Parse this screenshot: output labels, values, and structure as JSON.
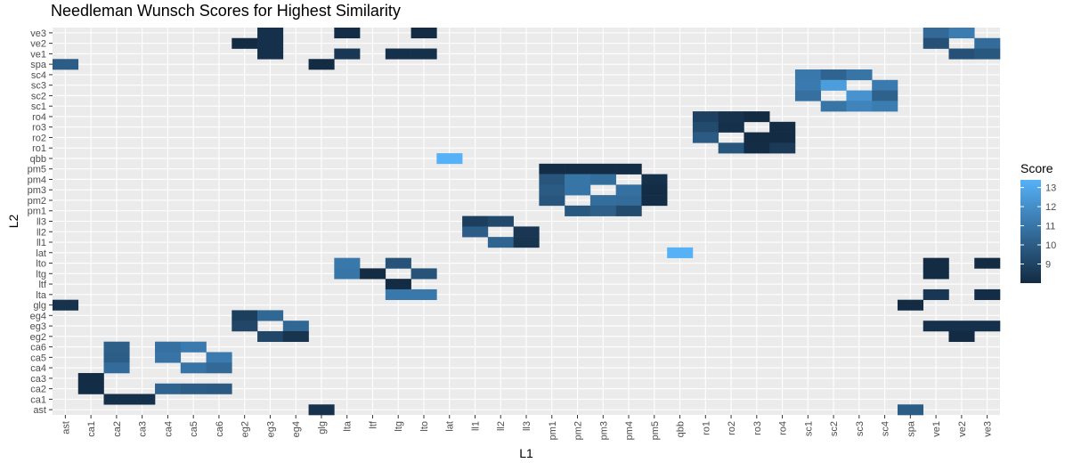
{
  "chart_data": {
    "type": "heatmap",
    "title": "Needleman Wunsch Scores for Highest Similarity",
    "xlabel": "L1",
    "ylabel": "L2",
    "legend": {
      "title": "Score",
      "ticks": [
        9,
        10,
        11,
        12,
        13
      ],
      "range": [
        8,
        13.4
      ],
      "low_color": "#132b43",
      "high_color": "#56b1f7",
      "placement": "right"
    },
    "x_categories": [
      "ast",
      "ca1",
      "ca2",
      "ca3",
      "ca4",
      "ca5",
      "ca6",
      "eg2",
      "eg3",
      "eg4",
      "glg",
      "lta",
      "ltf",
      "ltg",
      "lto",
      "lat",
      "ll1",
      "ll2",
      "ll3",
      "pm1",
      "pm2",
      "pm3",
      "pm4",
      "pm5",
      "qbb",
      "ro1",
      "ro2",
      "ro3",
      "ro4",
      "sc1",
      "sc2",
      "sc3",
      "sc4",
      "spa",
      "ve1",
      "ve2",
      "ve3"
    ],
    "y_categories": [
      "ast",
      "ca1",
      "ca2",
      "ca3",
      "ca4",
      "ca5",
      "ca6",
      "eg2",
      "eg3",
      "eg4",
      "glg",
      "lta",
      "ltf",
      "ltg",
      "lto",
      "lat",
      "ll1",
      "ll2",
      "ll3",
      "pm1",
      "pm2",
      "pm3",
      "pm4",
      "pm5",
      "qbb",
      "ro1",
      "ro2",
      "ro3",
      "ro4",
      "sc1",
      "sc2",
      "sc3",
      "sc4",
      "spa",
      "ve1",
      "ve2",
      "ve3"
    ],
    "cells": [
      {
        "x": "eg3",
        "y": "ve3",
        "value": 8.2
      },
      {
        "x": "lta",
        "y": "ve3",
        "value": 8.1
      },
      {
        "x": "lto",
        "y": "ve3",
        "value": 8.0
      },
      {
        "x": "ve1",
        "y": "ve3",
        "value": 10.5
      },
      {
        "x": "ve2",
        "y": "ve3",
        "value": 11.3
      },
      {
        "x": "eg2",
        "y": "ve2",
        "value": 8.0
      },
      {
        "x": "eg3",
        "y": "ve2",
        "value": 8.2
      },
      {
        "x": "ve1",
        "y": "ve2",
        "value": 9.5
      },
      {
        "x": "ve3",
        "y": "ve2",
        "value": 10.6
      },
      {
        "x": "eg3",
        "y": "ve1",
        "value": 8.2
      },
      {
        "x": "lta",
        "y": "ve1",
        "value": 8.5
      },
      {
        "x": "ltg",
        "y": "ve1",
        "value": 8.2
      },
      {
        "x": "lto",
        "y": "ve1",
        "value": 8.2
      },
      {
        "x": "ve2",
        "y": "ve1",
        "value": 9.5
      },
      {
        "x": "ve3",
        "y": "ve1",
        "value": 9.8
      },
      {
        "x": "ast",
        "y": "spa",
        "value": 10.0
      },
      {
        "x": "glg",
        "y": "spa",
        "value": 8.0
      },
      {
        "x": "sc1",
        "y": "sc4",
        "value": 11.1
      },
      {
        "x": "sc2",
        "y": "sc4",
        "value": 10.3
      },
      {
        "x": "sc3",
        "y": "sc4",
        "value": 11.0
      },
      {
        "x": "sc1",
        "y": "sc3",
        "value": 11.2
      },
      {
        "x": "sc2",
        "y": "sc3",
        "value": 12.6
      },
      {
        "x": "sc4",
        "y": "sc3",
        "value": 11.2
      },
      {
        "x": "sc1",
        "y": "sc2",
        "value": 10.8
      },
      {
        "x": "sc3",
        "y": "sc2",
        "value": 12.2
      },
      {
        "x": "sc4",
        "y": "sc2",
        "value": 10.2
      },
      {
        "x": "sc2",
        "y": "sc1",
        "value": 11.0
      },
      {
        "x": "sc3",
        "y": "sc1",
        "value": 11.6
      },
      {
        "x": "sc4",
        "y": "sc1",
        "value": 11.3
      },
      {
        "x": "ro1",
        "y": "ro4",
        "value": 8.9
      },
      {
        "x": "ro2",
        "y": "ro4",
        "value": 8.3
      },
      {
        "x": "ro3",
        "y": "ro4",
        "value": 8.0
      },
      {
        "x": "ro1",
        "y": "ro3",
        "value": 9.3
      },
      {
        "x": "ro2",
        "y": "ro3",
        "value": 8.2
      },
      {
        "x": "ro4",
        "y": "ro3",
        "value": 8.0
      },
      {
        "x": "ro1",
        "y": "ro2",
        "value": 9.9
      },
      {
        "x": "ro3",
        "y": "ro2",
        "value": 8.0
      },
      {
        "x": "ro4",
        "y": "ro2",
        "value": 8.0
      },
      {
        "x": "ro2",
        "y": "ro1",
        "value": 9.7
      },
      {
        "x": "ro3",
        "y": "ro1",
        "value": 8.1
      },
      {
        "x": "ro4",
        "y": "ro1",
        "value": 8.6
      },
      {
        "x": "lat",
        "y": "qbb",
        "value": 13.4
      },
      {
        "x": "pm1",
        "y": "pm5",
        "value": 8.1
      },
      {
        "x": "pm2",
        "y": "pm5",
        "value": 8.1
      },
      {
        "x": "pm3",
        "y": "pm5",
        "value": 8.1
      },
      {
        "x": "pm4",
        "y": "pm5",
        "value": 8.1
      },
      {
        "x": "pm1",
        "y": "pm4",
        "value": 9.7
      },
      {
        "x": "pm2",
        "y": "pm4",
        "value": 11.0
      },
      {
        "x": "pm3",
        "y": "pm4",
        "value": 10.7
      },
      {
        "x": "pm5",
        "y": "pm4",
        "value": 8.2
      },
      {
        "x": "pm1",
        "y": "pm3",
        "value": 9.9
      },
      {
        "x": "pm2",
        "y": "pm3",
        "value": 11.0
      },
      {
        "x": "pm4",
        "y": "pm3",
        "value": 10.8
      },
      {
        "x": "pm5",
        "y": "pm3",
        "value": 8.1
      },
      {
        "x": "pm1",
        "y": "pm2",
        "value": 9.7
      },
      {
        "x": "pm3",
        "y": "pm2",
        "value": 10.7
      },
      {
        "x": "pm4",
        "y": "pm2",
        "value": 10.6
      },
      {
        "x": "pm5",
        "y": "pm2",
        "value": 8.1
      },
      {
        "x": "pm2",
        "y": "pm1",
        "value": 9.8
      },
      {
        "x": "pm3",
        "y": "pm1",
        "value": 10.1
      },
      {
        "x": "pm4",
        "y": "pm1",
        "value": 9.3
      },
      {
        "x": "ll1",
        "y": "ll3",
        "value": 8.8
      },
      {
        "x": "ll2",
        "y": "ll3",
        "value": 9.2
      },
      {
        "x": "ll1",
        "y": "ll2",
        "value": 10.0
      },
      {
        "x": "ll3",
        "y": "ll2",
        "value": 8.5
      },
      {
        "x": "ll2",
        "y": "ll1",
        "value": 10.3
      },
      {
        "x": "ll3",
        "y": "ll1",
        "value": 8.4
      },
      {
        "x": "qbb",
        "y": "lat",
        "value": 13.4
      },
      {
        "x": "lta",
        "y": "lto",
        "value": 11.1
      },
      {
        "x": "ltg",
        "y": "lto",
        "value": 9.6
      },
      {
        "x": "ve1",
        "y": "lto",
        "value": 8.0
      },
      {
        "x": "ve3",
        "y": "lto",
        "value": 8.0
      },
      {
        "x": "lta",
        "y": "ltg",
        "value": 11.0
      },
      {
        "x": "ltf",
        "y": "ltg",
        "value": 8.0
      },
      {
        "x": "lto",
        "y": "ltg",
        "value": 9.6
      },
      {
        "x": "ve1",
        "y": "ltg",
        "value": 8.0
      },
      {
        "x": "ltg",
        "y": "ltf",
        "value": 8.0
      },
      {
        "x": "ltg",
        "y": "lta",
        "value": 11.1
      },
      {
        "x": "lto",
        "y": "lta",
        "value": 11.1
      },
      {
        "x": "ve1",
        "y": "lta",
        "value": 8.5
      },
      {
        "x": "ve3",
        "y": "lta",
        "value": 8.1
      },
      {
        "x": "ast",
        "y": "glg",
        "value": 8.3
      },
      {
        "x": "spa",
        "y": "glg",
        "value": 8.0
      },
      {
        "x": "eg2",
        "y": "eg4",
        "value": 8.8
      },
      {
        "x": "eg3",
        "y": "eg4",
        "value": 10.4
      },
      {
        "x": "eg2",
        "y": "eg3",
        "value": 9.1
      },
      {
        "x": "eg4",
        "y": "eg3",
        "value": 10.4
      },
      {
        "x": "ve1",
        "y": "eg3",
        "value": 8.2
      },
      {
        "x": "ve2",
        "y": "eg3",
        "value": 8.2
      },
      {
        "x": "ve3",
        "y": "eg3",
        "value": 8.2
      },
      {
        "x": "eg3",
        "y": "eg2",
        "value": 9.1
      },
      {
        "x": "eg4",
        "y": "eg2",
        "value": 8.4
      },
      {
        "x": "ve2",
        "y": "eg2",
        "value": 8.0
      },
      {
        "x": "ca2",
        "y": "ca6",
        "value": 10.1
      },
      {
        "x": "ca4",
        "y": "ca6",
        "value": 10.8
      },
      {
        "x": "ca5",
        "y": "ca6",
        "value": 11.2
      },
      {
        "x": "ca2",
        "y": "ca5",
        "value": 10.0
      },
      {
        "x": "ca4",
        "y": "ca5",
        "value": 10.9
      },
      {
        "x": "ca6",
        "y": "ca5",
        "value": 11.2
      },
      {
        "x": "ca2",
        "y": "ca4",
        "value": 10.6
      },
      {
        "x": "ca5",
        "y": "ca4",
        "value": 10.9
      },
      {
        "x": "ca6",
        "y": "ca4",
        "value": 10.5
      },
      {
        "x": "ca1",
        "y": "ca3",
        "value": 8.1
      },
      {
        "x": "ca1",
        "y": "ca2",
        "value": 8.1
      },
      {
        "x": "ca4",
        "y": "ca2",
        "value": 10.3
      },
      {
        "x": "ca5",
        "y": "ca2",
        "value": 10.0
      },
      {
        "x": "ca6",
        "y": "ca2",
        "value": 9.9
      },
      {
        "x": "ca2",
        "y": "ca1",
        "value": 8.2
      },
      {
        "x": "ca3",
        "y": "ca1",
        "value": 8.2
      },
      {
        "x": "glg",
        "y": "ast",
        "value": 8.3
      },
      {
        "x": "spa",
        "y": "ast",
        "value": 10.0
      }
    ]
  }
}
